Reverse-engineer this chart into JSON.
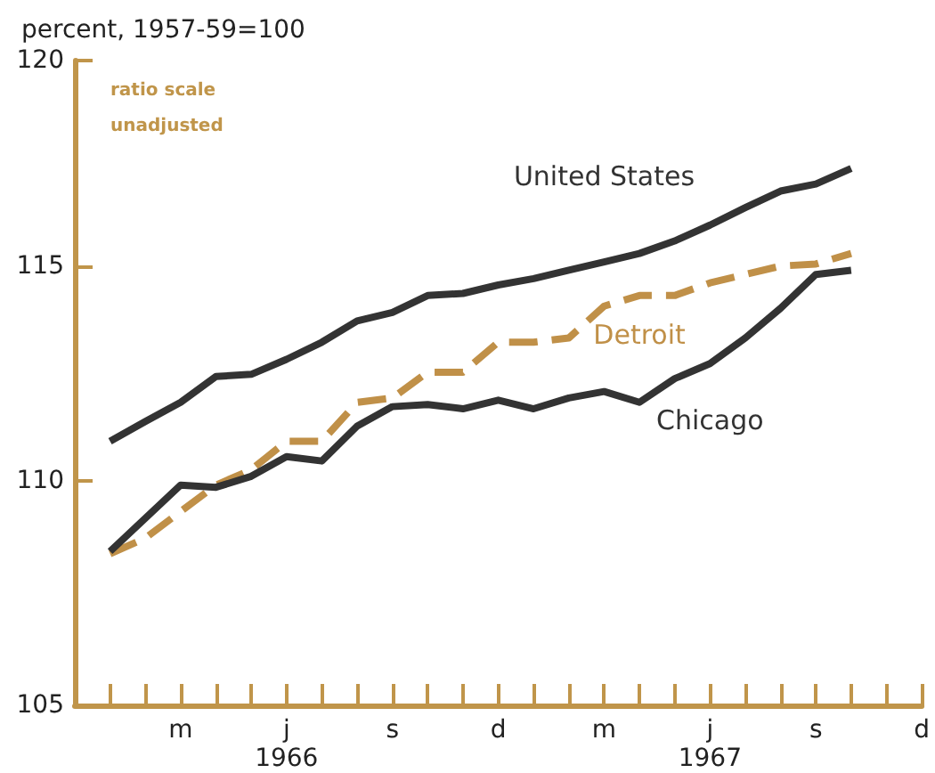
{
  "chart_data": {
    "type": "line",
    "ylabel": "percent, 1957-59=100",
    "annotations": [
      "ratio scale",
      "unadjusted"
    ],
    "categories": [
      null,
      null,
      null,
      "m",
      null,
      null,
      "j\n1966",
      null,
      null,
      "s",
      null,
      null,
      "d",
      null,
      null,
      "m",
      null,
      null,
      "j\n1967",
      null,
      null,
      "s",
      null,
      null,
      "d"
    ],
    "series": [
      {
        "name": "United States",
        "color": "#333333",
        "line_style": "solid",
        "values": [
          null,
          110.9,
          111.36,
          111.8,
          112.4,
          112.45,
          112.8,
          113.2,
          113.7,
          113.9,
          114.3,
          114.35,
          114.55,
          114.7,
          114.9,
          115.1,
          115.3,
          115.6,
          115.98,
          116.4,
          116.8,
          116.97,
          117.35,
          null,
          null
        ]
      },
      {
        "name": "Detroit",
        "color": "#c09048",
        "line_style": "dashed",
        "values": [
          null,
          108.35,
          108.7,
          109.3,
          109.9,
          110.25,
          110.9,
          110.9,
          111.8,
          111.9,
          112.5,
          112.5,
          113.2,
          113.2,
          113.3,
          114.05,
          114.3,
          114.3,
          114.6,
          114.8,
          115.0,
          115.05,
          115.3,
          null,
          null
        ]
      },
      {
        "name": "Chicago",
        "color": "#333333",
        "line_style": "solid",
        "values": [
          null,
          108.4,
          109.15,
          109.9,
          109.85,
          110.1,
          110.55,
          110.45,
          111.25,
          111.7,
          111.75,
          111.65,
          111.85,
          111.65,
          111.9,
          112.05,
          111.8,
          112.35,
          112.7,
          113.3,
          114.0,
          114.8,
          114.9,
          null,
          null
        ]
      }
    ],
    "ylim": [
      105,
      120
    ],
    "yticks": [
      105,
      110,
      115,
      120
    ],
    "log": true,
    "grid": false,
    "legend": false,
    "marker": "none"
  }
}
